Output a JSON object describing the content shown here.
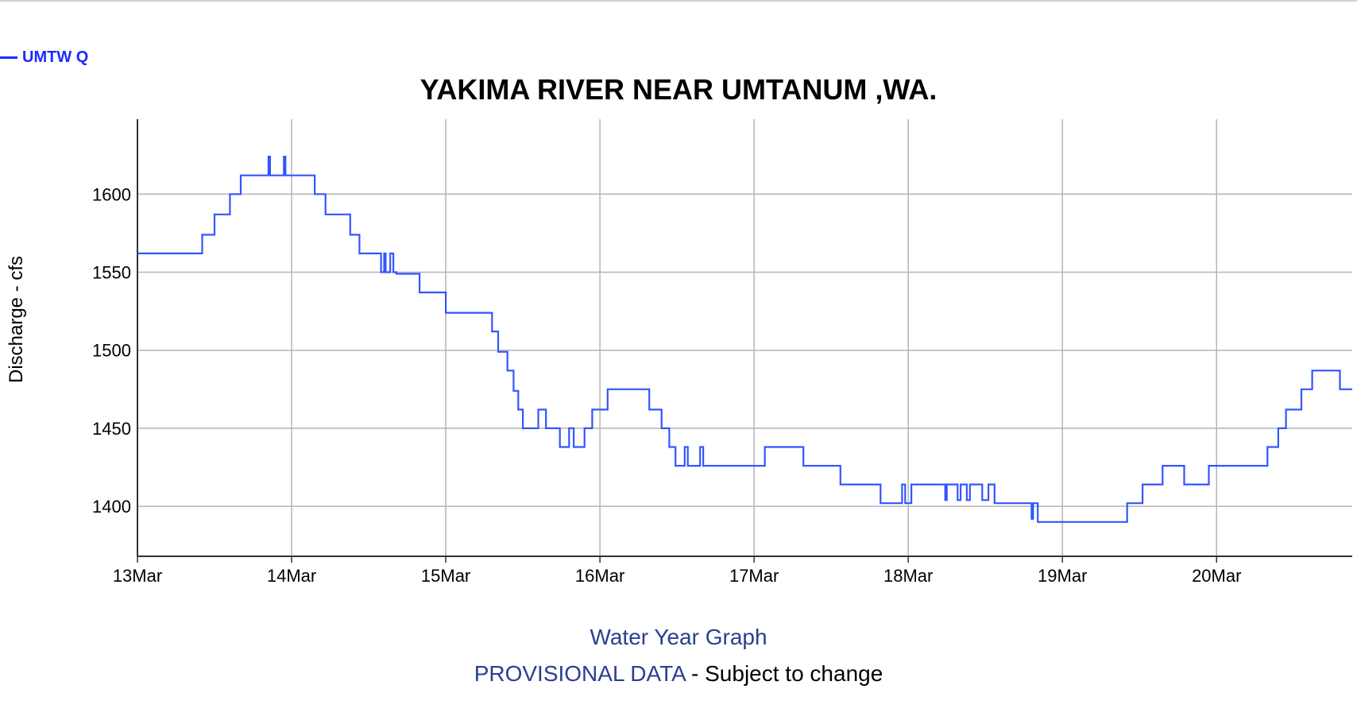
{
  "legend": {
    "label": "UMTW Q",
    "color": "#1a2bff"
  },
  "chart_data": {
    "type": "line",
    "title": "YAKIMA RIVER NEAR UMTANUM ,WA.",
    "xlabel": "",
    "ylabel": "Discharge - cfs",
    "x_tick_labels": [
      "13Mar",
      "14Mar",
      "15Mar",
      "16Mar",
      "17Mar",
      "18Mar",
      "19Mar",
      "20Mar"
    ],
    "x_unit": "days since 13Mar 00:00",
    "xlim": [
      0,
      7.88
    ],
    "ylim": [
      1368,
      1648
    ],
    "y_ticks": [
      1400,
      1450,
      1500,
      1550,
      1600
    ],
    "grid": true,
    "line_color": "#3355ff",
    "series": [
      {
        "name": "UMTW Q",
        "x": [
          0.0,
          0.42,
          0.42,
          0.5,
          0.5,
          0.6,
          0.6,
          0.67,
          0.67,
          0.74,
          0.74,
          0.85,
          0.85,
          0.86,
          0.86,
          0.95,
          0.95,
          0.96,
          0.96,
          1.15,
          1.15,
          1.16,
          1.16,
          1.22,
          1.22,
          1.23,
          1.23,
          1.25,
          1.25,
          1.38,
          1.38,
          1.4,
          1.4,
          1.44,
          1.44,
          1.45,
          1.45,
          1.58,
          1.58,
          1.6,
          1.6,
          1.61,
          1.61,
          1.64,
          1.64,
          1.66,
          1.66,
          1.68,
          1.68,
          1.83,
          1.83,
          2.0,
          2.0,
          2.3,
          2.3,
          2.34,
          2.34,
          2.4,
          2.4,
          2.44,
          2.44,
          2.47,
          2.47,
          2.5,
          2.5,
          2.6,
          2.6,
          2.65,
          2.65,
          2.66,
          2.66,
          2.74,
          2.74,
          2.8,
          2.8,
          2.83,
          2.83,
          2.9,
          2.9,
          2.95,
          2.95,
          3.05,
          3.05,
          3.32,
          3.32,
          3.4,
          3.4,
          3.45,
          3.45,
          3.49,
          3.49,
          3.55,
          3.55,
          3.57,
          3.57,
          3.6,
          3.6,
          3.65,
          3.65,
          3.67,
          3.67,
          3.73,
          3.73,
          4.07,
          4.07,
          4.32,
          4.32,
          4.56,
          4.56,
          4.82,
          4.82,
          4.96,
          4.96,
          4.98,
          4.98,
          5.02,
          5.02,
          5.24,
          5.24,
          5.25,
          5.25,
          5.32,
          5.32,
          5.34,
          5.34,
          5.38,
          5.38,
          5.4,
          5.4,
          5.48,
          5.48,
          5.52,
          5.52,
          5.56,
          5.56,
          5.8,
          5.8,
          5.81,
          5.81,
          5.84,
          5.84,
          6.42,
          6.42,
          6.52,
          6.52,
          6.65,
          6.65,
          6.79,
          6.79,
          6.95,
          6.95,
          7.33,
          7.33,
          7.4,
          7.4,
          7.45,
          7.45,
          7.55,
          7.55,
          7.62,
          7.62,
          7.8,
          7.8,
          7.88
        ],
        "y": [
          1562,
          1562,
          1574,
          1574,
          1587,
          1587,
          1600,
          1600,
          1612,
          1612,
          1612,
          1612,
          1624,
          1624,
          1612,
          1612,
          1624,
          1624,
          1612,
          1612,
          1600,
          1600,
          1600,
          1600,
          1587,
          1587,
          1587,
          1587,
          1587,
          1587,
          1574,
          1574,
          1574,
          1574,
          1562,
          1562,
          1562,
          1562,
          1550,
          1550,
          1562,
          1562,
          1550,
          1550,
          1562,
          1562,
          1550,
          1550,
          1549,
          1549,
          1537,
          1537,
          1524,
          1524,
          1512,
          1512,
          1499,
          1499,
          1487,
          1487,
          1474,
          1474,
          1462,
          1462,
          1450,
          1450,
          1462,
          1462,
          1450,
          1450,
          1450,
          1450,
          1438,
          1438,
          1450,
          1450,
          1438,
          1438,
          1450,
          1450,
          1462,
          1462,
          1475,
          1475,
          1462,
          1462,
          1450,
          1450,
          1438,
          1438,
          1426,
          1426,
          1438,
          1438,
          1426,
          1426,
          1426,
          1426,
          1438,
          1438,
          1426,
          1426,
          1426,
          1426,
          1438,
          1438,
          1426,
          1426,
          1414,
          1414,
          1402,
          1402,
          1414,
          1414,
          1402,
          1402,
          1414,
          1414,
          1404,
          1404,
          1414,
          1414,
          1404,
          1404,
          1414,
          1414,
          1404,
          1404,
          1414,
          1414,
          1404,
          1404,
          1414,
          1414,
          1402,
          1402,
          1392,
          1392,
          1402,
          1402,
          1390,
          1390,
          1402,
          1402,
          1414,
          1414,
          1426,
          1426,
          1414,
          1414,
          1426,
          1426,
          1438,
          1438,
          1450,
          1450,
          1462,
          1462,
          1475,
          1475,
          1487,
          1487,
          1475,
          1475
        ]
      }
    ]
  },
  "footer": {
    "link_text": "Water Year Graph",
    "provisional_text": "PROVISIONAL DATA",
    "suffix_text": " - Subject to change",
    "link_color": "#2a3f8f"
  }
}
